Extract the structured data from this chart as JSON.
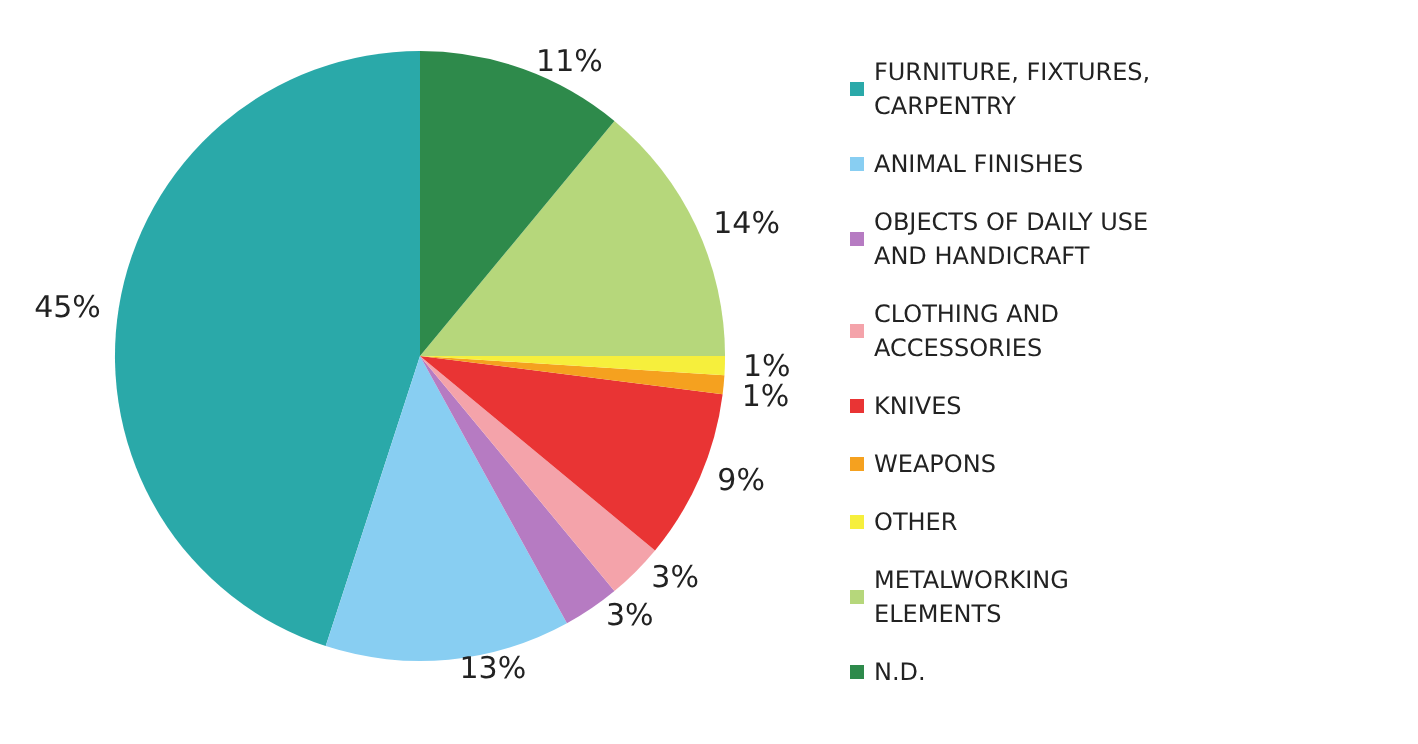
{
  "chart_data": {
    "type": "pie",
    "categories": [
      "FURNITURE, FIXTURES, CARPENTRY",
      "ANIMAL FINISHES",
      "OBJECTS OF DAILY USE AND HANDICRAFT",
      "CLOTHING AND ACCESSORIES",
      "KNIVES",
      "WEAPONS",
      "OTHER",
      "METALWORKING ELEMENTS",
      "N.D."
    ],
    "values": [
      45,
      13,
      3,
      3,
      9,
      1,
      1,
      14,
      11
    ],
    "value_labels": [
      "45%",
      "13%",
      "3%",
      "3%",
      "9%",
      "1%",
      "1%",
      "14%",
      "11%"
    ],
    "colors": [
      "#2aa9a9",
      "#88cef2",
      "#b67bc2",
      "#f4a3aa",
      "#e93434",
      "#f5a11f",
      "#f6ef3c",
      "#b6d77b",
      "#2e8a4b"
    ],
    "legend": "right"
  }
}
